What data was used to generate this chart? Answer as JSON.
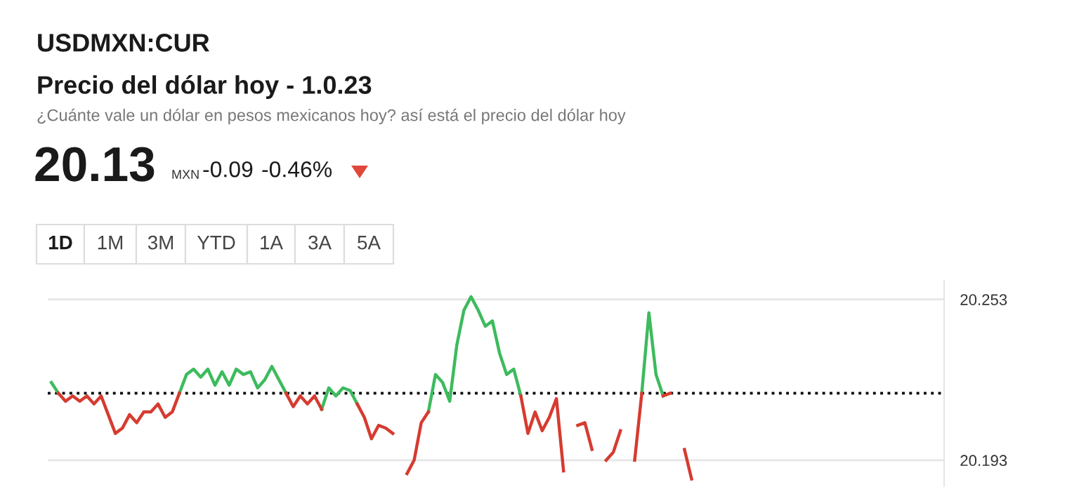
{
  "chart_data": {
    "type": "line",
    "title": "USDMXN:CUR",
    "subtitle": "Precio del dólar hoy - 1.0.23",
    "annotations": [
      "¿Cuánte vale un dólar en pesos mexicanos hoy? así está el precio del dólar hoy",
      "20.13",
      "MXN",
      "-0.09",
      "-0.46%",
      "1D",
      "1M",
      "3M",
      "YTD",
      "1A",
      "3A",
      "5A"
    ],
    "categories": [
      null,
      null,
      null,
      null,
      null,
      null,
      null,
      null,
      null,
      null,
      null,
      null,
      null,
      null,
      null,
      null,
      null,
      null,
      null,
      null,
      null,
      null,
      null,
      null,
      null,
      null,
      null,
      null,
      null,
      null,
      null,
      null,
      null,
      null,
      null,
      null,
      null,
      null,
      null,
      null,
      null,
      null,
      null,
      null,
      null,
      null,
      null,
      null,
      null,
      null,
      null,
      null,
      null,
      null,
      null,
      null,
      null,
      null,
      null,
      null,
      null,
      null,
      null,
      null,
      null,
      null,
      null,
      null,
      null,
      null,
      null,
      null,
      null,
      null,
      null,
      null,
      null,
      null,
      null,
      null,
      null,
      null,
      null,
      null,
      null,
      null,
      null,
      null,
      null,
      null,
      null,
      null,
      null,
      null,
      null,
      null,
      null,
      null,
      null,
      null,
      null,
      null,
      null,
      null,
      null,
      null,
      null,
      null,
      null,
      null,
      null,
      null,
      null,
      null,
      null,
      null,
      null,
      null,
      null,
      null,
      null,
      null,
      null,
      null,
      null,
      null
    ],
    "series": [
      {
        "color": "#3dbb5d",
        "values": [
          20.222,
          20.218,
          null,
          null,
          null,
          null,
          null,
          null,
          null,
          null,
          null,
          null,
          null,
          null,
          null,
          null,
          null,
          null,
          20.218,
          20.225,
          20.227,
          20.224,
          20.227,
          20.221,
          20.226,
          20.221,
          20.227,
          20.225,
          20.226,
          20.22,
          20.223,
          20.228,
          20.223,
          20.218,
          null,
          null,
          null,
          null,
          20.212,
          20.22,
          20.217,
          20.22,
          20.219,
          20.214,
          null,
          null,
          null,
          null,
          null,
          null,
          null,
          null,
          null,
          20.211,
          20.225,
          20.222,
          20.215,
          20.236,
          20.249,
          20.254,
          20.249,
          20.243,
          20.245,
          20.233,
          20.225,
          20.227,
          20.217,
          null,
          null,
          null,
          null,
          null,
          null,
          null,
          null,
          null,
          null,
          null,
          null,
          null,
          null,
          null,
          null,
          20.218,
          20.248,
          20.225,
          20.217,
          null,
          null,
          null,
          null,
          null,
          null,
          null,
          null,
          null,
          null,
          null,
          null,
          null,
          null,
          null,
          null,
          null,
          null,
          null,
          null,
          null,
          null,
          null,
          null,
          null,
          null,
          null,
          null,
          null,
          null,
          null,
          null,
          null,
          null,
          null,
          null,
          null,
          null,
          null
        ]
      },
      {
        "color": "#d63b30",
        "values": [
          null,
          20.218,
          20.215,
          20.217,
          20.215,
          20.217,
          20.214,
          20.217,
          20.21,
          20.203,
          20.205,
          20.21,
          20.207,
          20.211,
          20.211,
          20.214,
          20.209,
          20.211,
          20.218,
          null,
          null,
          null,
          null,
          null,
          null,
          null,
          null,
          null,
          null,
          null,
          null,
          null,
          null,
          20.218,
          20.213,
          20.217,
          20.214,
          20.217,
          20.212,
          null,
          null,
          null,
          null,
          20.214,
          20.209,
          20.201,
          20.206,
          20.205,
          20.203,
          null,
          20.188,
          20.193,
          20.207,
          20.211,
          null,
          null,
          null,
          null,
          null,
          null,
          null,
          null,
          null,
          null,
          null,
          null,
          20.217,
          20.203,
          20.211,
          20.204,
          20.209,
          20.216,
          20.189,
          null,
          20.206,
          20.207,
          20.197,
          null,
          20.193,
          20.196,
          20.204,
          null,
          20.193,
          20.218,
          null,
          null,
          20.217,
          20.218,
          null,
          20.197,
          20.186,
          null,
          null,
          null,
          null,
          null,
          null,
          null,
          null,
          null,
          null,
          null,
          null,
          null,
          null,
          null,
          null,
          null,
          null,
          null,
          null,
          null,
          null,
          null,
          null,
          null,
          null,
          null,
          null,
          null,
          null,
          null,
          null,
          null,
          null,
          null
        ]
      }
    ],
    "ylim": [
      20.183,
      20.26
    ],
    "yticks": [
      20.193,
      20.253
    ],
    "grid": "y",
    "ref_lines": [
      {
        "axis": "y",
        "value": 20.218,
        "color": "#000000",
        "line_style": "dotted"
      }
    ],
    "marker": "none",
    "line_style": "solid"
  }
}
